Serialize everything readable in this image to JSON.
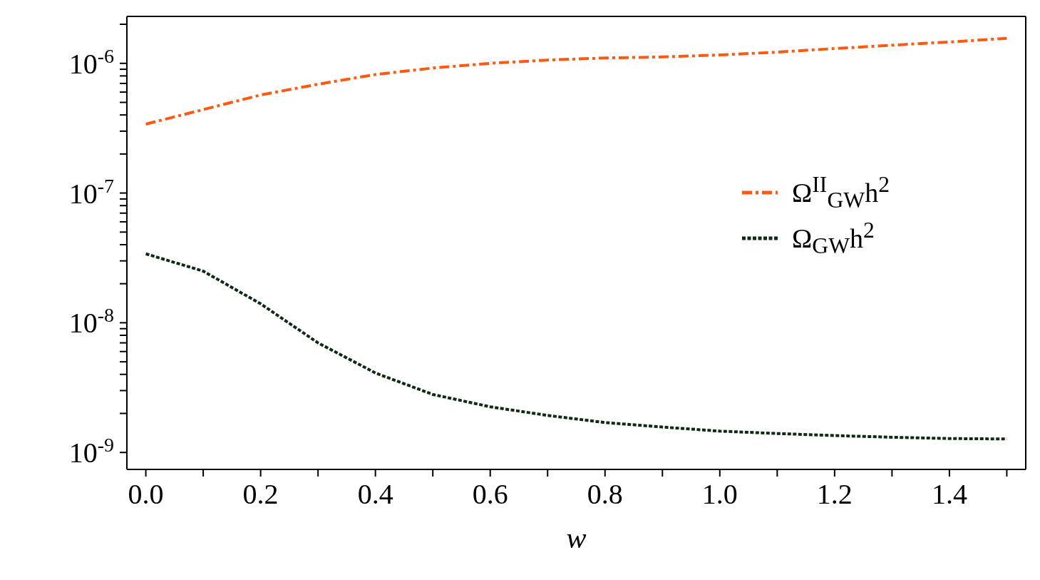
{
  "chart_data": {
    "type": "line",
    "xlabel": "w",
    "x": [
      0,
      0.1,
      0.2,
      0.3,
      0.4,
      0.5,
      0.6,
      0.7,
      0.8,
      0.9,
      1.0,
      1.1,
      1.2,
      1.3,
      1.4,
      1.5
    ],
    "series": [
      {
        "name": "Ω$^{II}$$_{GW}$h$^{2}$",
        "color": "#ff5a14",
        "line_style": "dashed",
        "values": [
          3.4e-07,
          4.4e-07,
          5.7e-07,
          6.9e-07,
          8.2e-07,
          9.2e-07,
          1e-06,
          1.06e-06,
          1.1e-06,
          1.12e-06,
          1.16e-06,
          1.22e-06,
          1.3e-06,
          1.38e-06,
          1.46e-06,
          1.56e-06
        ]
      },
      {
        "name": "Ω$_{GW}$h$^{2}$",
        "color": "#0f2a14",
        "line_style": "dotted",
        "values": [
          3.4e-08,
          2.5e-08,
          1.4e-08,
          7e-09,
          4.1e-09,
          2.8e-09,
          2.25e-09,
          1.93e-09,
          1.7e-09,
          1.57e-09,
          1.46e-09,
          1.4e-09,
          1.35e-09,
          1.31e-09,
          1.28e-09,
          1.27e-09
        ]
      }
    ],
    "log": "y",
    "xlim": [
      -0.033,
      1.533
    ],
    "ylim": [
      7.4e-10,
      2.3e-06
    ],
    "xticks": [
      {
        "value": 0,
        "label": "0.0"
      },
      {
        "value": 0.1,
        "label": null
      },
      {
        "value": 0.2,
        "label": "0.2"
      },
      {
        "value": 0.3,
        "label": null
      },
      {
        "value": 0.4,
        "label": "0.4"
      },
      {
        "value": 0.5,
        "label": null
      },
      {
        "value": 0.6,
        "label": "0.6"
      },
      {
        "value": 0.7,
        "label": null
      },
      {
        "value": 0.8,
        "label": "0.8"
      },
      {
        "value": 0.9,
        "label": null
      },
      {
        "value": 1.0,
        "label": "1.0"
      },
      {
        "value": 1.1,
        "label": null
      },
      {
        "value": 1.2,
        "label": "1.2"
      },
      {
        "value": 1.3,
        "label": null
      },
      {
        "value": 1.4,
        "label": "1.4"
      },
      {
        "value": 1.5,
        "label": null
      }
    ],
    "yticks": [
      {
        "value": 1e-09,
        "label": "10$^{-9}$"
      },
      {
        "value": 2e-09,
        "label": null
      },
      {
        "value": 3e-09,
        "label": null
      },
      {
        "value": 4e-09,
        "label": null
      },
      {
        "value": 5e-09,
        "label": null
      },
      {
        "value": 6e-09,
        "label": null
      },
      {
        "value": 7e-09,
        "label": null
      },
      {
        "value": 8e-09,
        "label": null
      },
      {
        "value": 9e-09,
        "label": null
      },
      {
        "value": 1e-08,
        "label": "10$^{-8}$"
      },
      {
        "value": 2e-08,
        "label": null
      },
      {
        "value": 3e-08,
        "label": null
      },
      {
        "value": 4e-08,
        "label": null
      },
      {
        "value": 5e-08,
        "label": null
      },
      {
        "value": 6e-08,
        "label": null
      },
      {
        "value": 7e-08,
        "label": null
      },
      {
        "value": 8e-08,
        "label": null
      },
      {
        "value": 9e-08,
        "label": null
      },
      {
        "value": 1e-07,
        "label": "10$^{-7}$"
      },
      {
        "value": 2e-07,
        "label": null
      },
      {
        "value": 3e-07,
        "label": null
      },
      {
        "value": 4e-07,
        "label": null
      },
      {
        "value": 5e-07,
        "label": null
      },
      {
        "value": 6e-07,
        "label": null
      },
      {
        "value": 7e-07,
        "label": null
      },
      {
        "value": 8e-07,
        "label": null
      },
      {
        "value": 9e-07,
        "label": null
      },
      {
        "value": 1e-06,
        "label": "10$^{-6}$"
      },
      {
        "value": 2e-06,
        "label": null
      }
    ],
    "legend": "right",
    "grid": false,
    "marker": "none"
  }
}
